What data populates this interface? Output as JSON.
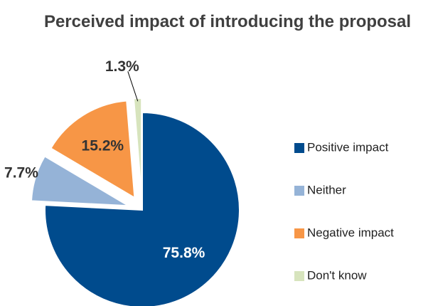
{
  "chart_data": {
    "type": "pie",
    "title": "Perceived impact of introducing the proposal",
    "categories": [
      "Positive impact",
      "Neither",
      "Negative impact",
      "Don't know"
    ],
    "values": [
      75.8,
      7.7,
      15.2,
      1.3
    ],
    "value_labels": [
      "75.8%",
      "7.7%",
      "15.2%",
      "1.3%"
    ],
    "colors": [
      "#004b8d",
      "#95b3d7",
      "#f79646",
      "#d7e4bd"
    ],
    "legend": "right"
  }
}
